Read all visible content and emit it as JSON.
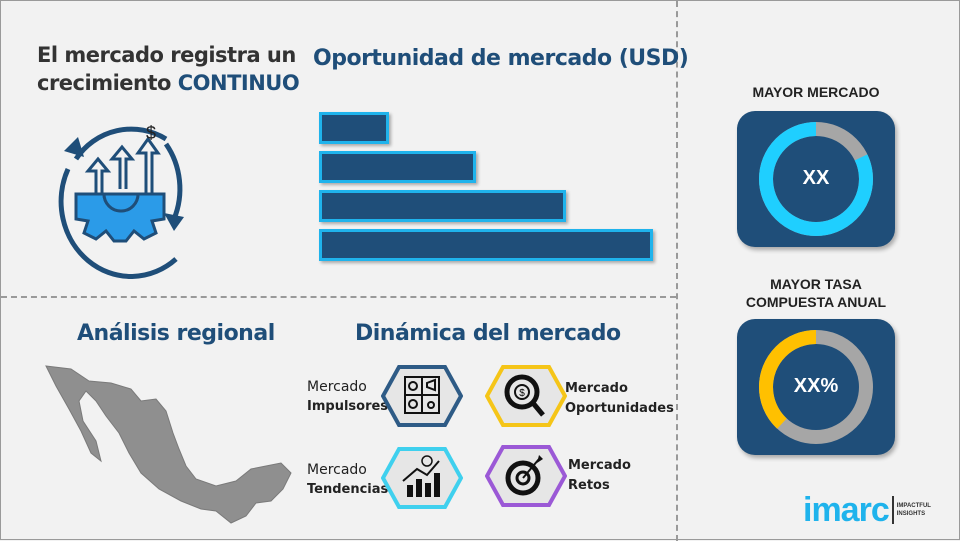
{
  "growth": {
    "line1": "El mercado registra un",
    "line2_prefix": "crecimiento ",
    "line2_emphasis": "CONTINUO",
    "icon": "gear-growth-arrows-dollar-icon",
    "currency_symbol": "$"
  },
  "opportunity": {
    "title": "Oportunidad de mercado (USD)",
    "bar_relative_values": [
      21,
      47,
      74,
      100
    ],
    "bar_color": "#1f4e79",
    "bar_border_color": "#1fb3ec"
  },
  "regional": {
    "title": "Análisis regional",
    "map": "mexico-map"
  },
  "dynamics": {
    "title": "Dinámica del mercado",
    "items": [
      {
        "line1": "Mercado",
        "line2": "Impulsores",
        "icon": "puzzle-icon",
        "color": "#2e5b86"
      },
      {
        "line1": "Mercado",
        "line2": "Oportunidades",
        "icon": "magnifier-dollar-icon",
        "color": "#f5c518"
      },
      {
        "line1": "Mercado",
        "line2": "Tendencias",
        "icon": "growth-chart-icon",
        "color": "#3fd0ee"
      },
      {
        "line1": "Mercado",
        "line2": "Retos",
        "icon": "target-icon",
        "color": "#9b59d6"
      }
    ]
  },
  "largest_market": {
    "title": "MAYOR MERCADO",
    "value": "XX",
    "fill_percent": 82,
    "fill_color": "#1fcfff",
    "rest_color": "#a6a6a6"
  },
  "highest_cagr": {
    "title_line1": "MAYOR TASA",
    "title_line2": "COMPUESTA ANUAL",
    "value": "XX%",
    "fill_percent": 38,
    "fill_color": "#ffc000",
    "rest_color": "#a6a6a6"
  },
  "logo": {
    "brand": "imarc",
    "tagline1": "IMPACTFUL",
    "tagline2": "INSIGHTS",
    "color": "#1fb3ec"
  }
}
